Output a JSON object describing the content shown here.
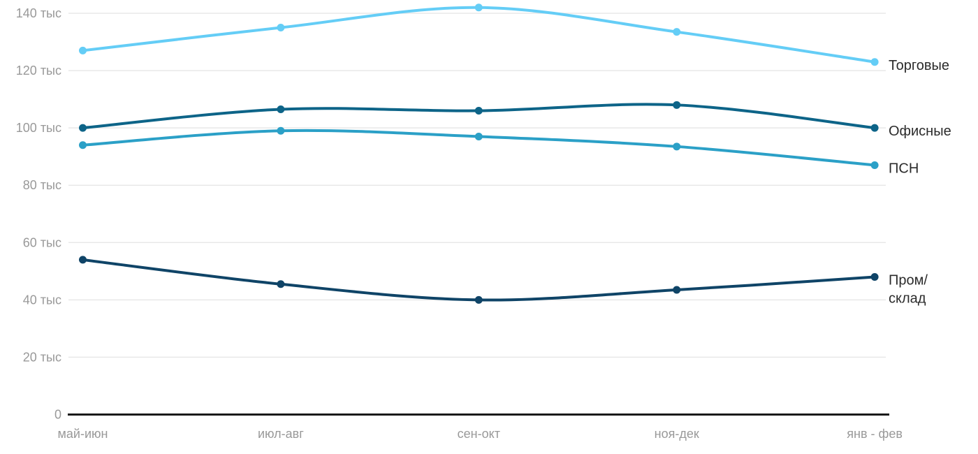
{
  "chart_data": {
    "type": "line",
    "title": "",
    "xlabel": "",
    "ylabel": "",
    "unit": "тыс",
    "x_categories": [
      "май-июн",
      "июл-авг",
      "сен-окт",
      "ноя-дек",
      "янв - фев"
    ],
    "y_ticks": [
      {
        "value": 0,
        "label": "0"
      },
      {
        "value": 20,
        "label": "20 тыс"
      },
      {
        "value": 40,
        "label": "40 тыс"
      },
      {
        "value": 60,
        "label": "60 тыс"
      },
      {
        "value": 80,
        "label": "80 тыс"
      },
      {
        "value": 100,
        "label": "100 тыс"
      },
      {
        "value": 120,
        "label": "120 тыс"
      },
      {
        "value": 140,
        "label": "140 тыс"
      }
    ],
    "ylim": [
      0,
      145
    ],
    "grid": true,
    "legend_position": "right-inline",
    "series": [
      {
        "name": "Торговые",
        "label_lines": [
          "Торговые"
        ],
        "color": "#64cdf6",
        "values": [
          127,
          135,
          142,
          133.5,
          123
        ]
      },
      {
        "name": "Офисные",
        "label_lines": [
          "Офисные"
        ],
        "color": "#0d6488",
        "values": [
          100,
          106.5,
          106,
          108,
          100
        ]
      },
      {
        "name": "ПСН",
        "label_lines": [
          "ПСН"
        ],
        "color": "#2ba0c7",
        "values": [
          94,
          99,
          97,
          93.5,
          87
        ]
      },
      {
        "name": "Пром/склад",
        "label_lines": [
          "Пром/",
          "склад"
        ],
        "color": "#0f4467",
        "values": [
          54,
          45.5,
          40,
          43.5,
          48
        ]
      }
    ],
    "colors": {
      "grid": "#e8e8e8",
      "axis": "#1a1a1a",
      "tick_label": "#999999",
      "series_label": "#2b2b2b",
      "background": "#ffffff"
    }
  }
}
